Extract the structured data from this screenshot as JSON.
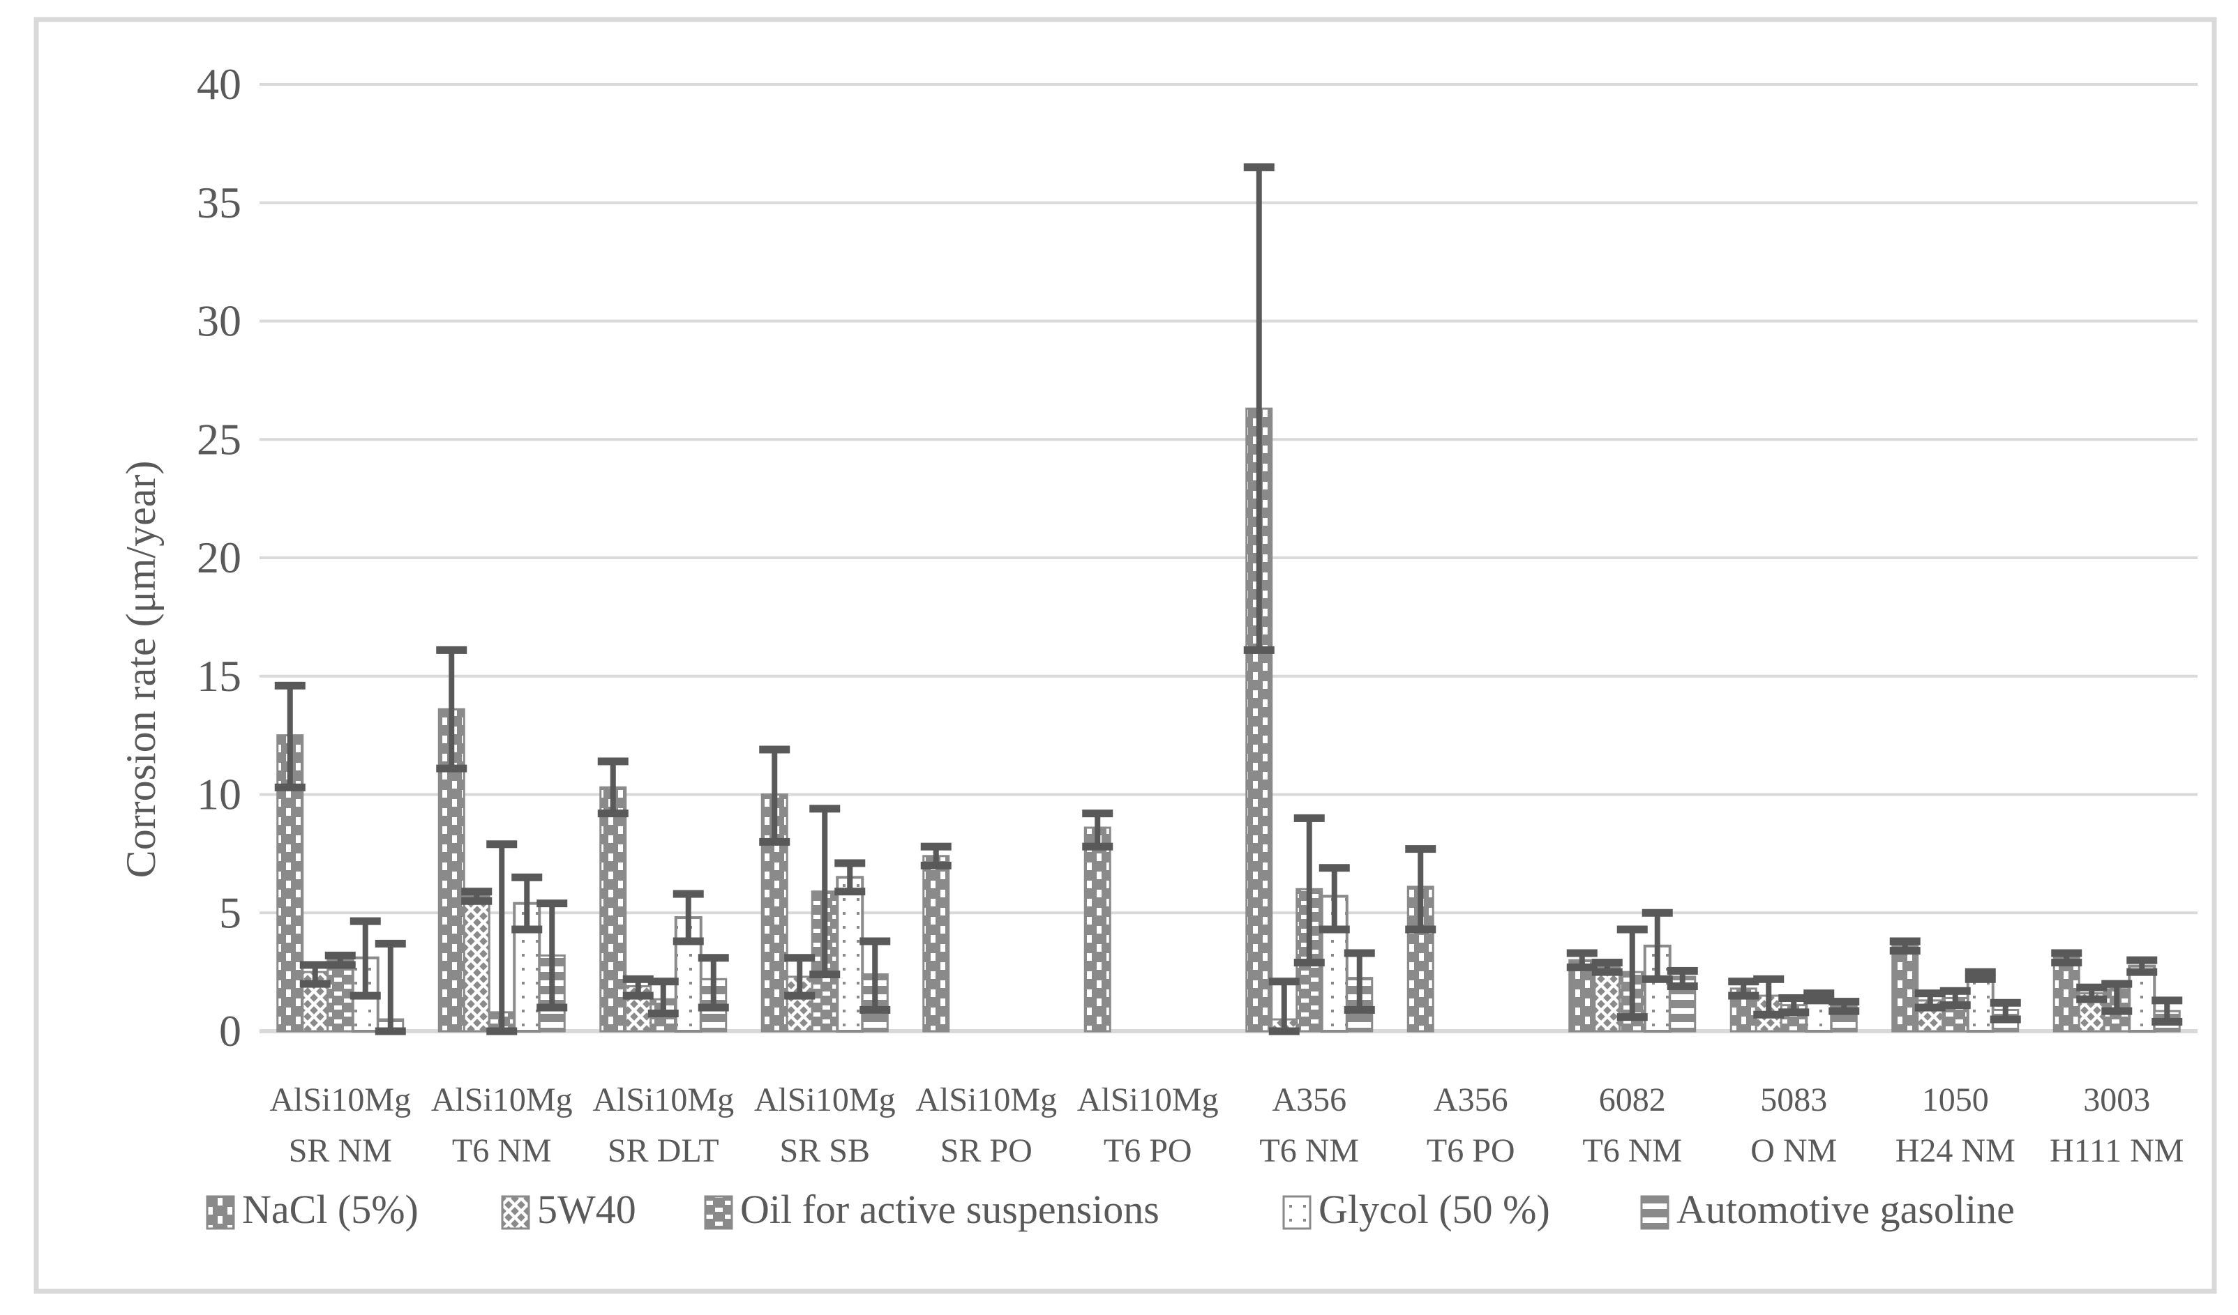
{
  "figure": {
    "background": "#ffffff",
    "border_color": "#d9d9d9"
  },
  "chart_data": {
    "type": "bar",
    "title": "",
    "xlabel": "",
    "ylabel": "Corrosion rate (μm/year)",
    "ylim": [
      0,
      40
    ],
    "yticks": [
      0,
      5,
      10,
      15,
      20,
      25,
      30,
      35,
      40
    ],
    "grid": true,
    "error_bars": true,
    "legend_position": "bottom",
    "categories": [
      [
        "AlSi10Mg",
        "SR NM"
      ],
      [
        "AlSi10Mg",
        "T6 NM"
      ],
      [
        "AlSi10Mg",
        "SR DLT"
      ],
      [
        "AlSi10Mg",
        "SR SB"
      ],
      [
        "AlSi10Mg",
        "SR PO"
      ],
      [
        "AlSi10Mg",
        "T6 PO"
      ],
      [
        "A356",
        "T6 NM"
      ],
      [
        "A356",
        "T6 PO"
      ],
      [
        "6082",
        "T6 NM"
      ],
      [
        "5083",
        "O NM"
      ],
      [
        "1050",
        "H24 NM"
      ],
      [
        "3003",
        "H111 NM"
      ]
    ],
    "series": [
      {
        "name": "NaCl (5%)",
        "pattern": "vertical-dash",
        "values": [
          12.5,
          13.6,
          10.3,
          10.0,
          7.4,
          8.6,
          26.3,
          6.1,
          3.0,
          1.8,
          3.6,
          3.1
        ],
        "err_up": [
          2.1,
          2.5,
          1.1,
          1.9,
          0.4,
          0.6,
          10.2,
          1.6,
          0.3,
          0.3,
          0.2,
          0.2
        ],
        "err_down": [
          2.2,
          2.5,
          1.1,
          2.0,
          0.4,
          0.8,
          10.2,
          1.8,
          0.3,
          0.3,
          0.2,
          0.2
        ]
      },
      {
        "name": "5W40",
        "pattern": "diagonal-crosshatch",
        "values": [
          2.5,
          5.7,
          1.9,
          2.3,
          0,
          0,
          0.5,
          0,
          2.7,
          1.5,
          1.3,
          1.6
        ],
        "err_up": [
          0.3,
          0.2,
          0.3,
          0.8,
          0,
          0,
          1.6,
          0,
          0.2,
          0.7,
          0.3,
          0.25
        ],
        "err_down": [
          0.5,
          0.2,
          0.4,
          0.8,
          0,
          0,
          0.5,
          0,
          0.2,
          0.8,
          0.3,
          0.25
        ]
      },
      {
        "name": "Oil for active suspensions",
        "pattern": "horizontal-dash",
        "values": [
          3.0,
          0.8,
          1.35,
          5.9,
          0,
          0,
          6.0,
          0,
          2.5,
          1.1,
          1.4,
          1.85
        ],
        "err_up": [
          0.2,
          7.1,
          0.75,
          3.5,
          0,
          0,
          3.0,
          0,
          1.8,
          0.3,
          0.3,
          0.15
        ],
        "err_down": [
          0.2,
          0.8,
          0.6,
          3.5,
          0,
          0,
          3.1,
          0,
          1.9,
          0.3,
          0.3,
          1.0
        ]
      },
      {
        "name": "Glycol (50 %)",
        "pattern": "white-dotted",
        "values": [
          3.1,
          5.4,
          4.8,
          6.5,
          0,
          0,
          5.7,
          0,
          3.6,
          1.45,
          2.35,
          2.75
        ],
        "err_up": [
          1.55,
          1.1,
          1.0,
          0.6,
          0,
          0,
          1.2,
          0,
          1.4,
          0.15,
          0.15,
          0.25
        ],
        "err_down": [
          1.6,
          1.1,
          1.0,
          0.6,
          0,
          0,
          1.4,
          0,
          1.4,
          0.15,
          0.15,
          0.25
        ]
      },
      {
        "name": "Automotive gasoline",
        "pattern": "horizontal-stripes",
        "values": [
          0.5,
          3.2,
          2.2,
          2.4,
          0,
          0,
          2.25,
          0,
          2.3,
          1.05,
          0.9,
          0.85
        ],
        "err_up": [
          3.2,
          2.2,
          0.9,
          1.4,
          0,
          0,
          1.05,
          0,
          0.25,
          0.2,
          0.3,
          0.45
        ],
        "err_down": [
          0.5,
          2.2,
          1.2,
          1.5,
          0,
          0,
          1.35,
          0,
          0.4,
          0.2,
          0.4,
          0.45
        ]
      }
    ],
    "colors": {
      "bar_base": "#8a8a8a",
      "bar_pattern": "#ffffff",
      "error_bar": "#595959",
      "gridline": "#d9d9d9",
      "axis_line": "#d9d9d9",
      "text": "#595959",
      "background": "#ffffff"
    }
  }
}
